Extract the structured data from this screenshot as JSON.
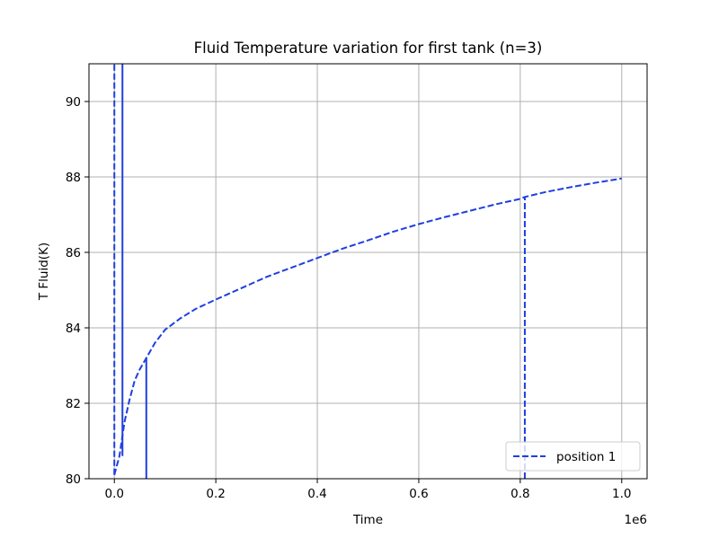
{
  "chart_data": {
    "type": "line",
    "title": "Fluid Temperature variation for first tank (n=3)",
    "xlabel": "Time",
    "ylabel": "T Fluid(K)",
    "x_offset_label": "1e6",
    "xlim": [
      -0.05,
      1.05
    ],
    "ylim": [
      80,
      91
    ],
    "xticks": [
      0.0,
      0.2,
      0.4,
      0.6,
      0.8,
      1.0
    ],
    "xtick_labels": [
      "0.0",
      "0.2",
      "0.4",
      "0.6",
      "0.8",
      "1.0"
    ],
    "yticks": [
      80,
      82,
      84,
      86,
      88,
      90
    ],
    "ytick_labels": [
      "80",
      "82",
      "84",
      "86",
      "88",
      "90"
    ],
    "grid": true,
    "legend_position": "lower-right",
    "color": "#1f3fe0",
    "series": [
      {
        "name": "position 1",
        "style": "dashed",
        "x": [
          0.0,
          0.01,
          0.02,
          0.03,
          0.04,
          0.05,
          0.063,
          0.08,
          0.1,
          0.13,
          0.16,
          0.2,
          0.25,
          0.3,
          0.35,
          0.4,
          0.45,
          0.5,
          0.55,
          0.6,
          0.65,
          0.7,
          0.75,
          0.8,
          0.809,
          0.85,
          0.9,
          0.95,
          1.0
        ],
        "y": [
          80.1,
          80.6,
          81.5,
          82.1,
          82.6,
          82.9,
          83.2,
          83.6,
          83.95,
          84.25,
          84.5,
          84.75,
          85.05,
          85.35,
          85.6,
          85.85,
          86.1,
          86.32,
          86.55,
          86.75,
          86.93,
          87.1,
          87.27,
          87.42,
          87.47,
          87.6,
          87.73,
          87.85,
          87.96
        ]
      }
    ],
    "vertical_segments": [
      {
        "x": 0.0,
        "y_from": 80.1,
        "y_to": 91,
        "style": "dashed"
      },
      {
        "x": 0.016,
        "y_from": 80.6,
        "y_to": 91,
        "style": "solid"
      },
      {
        "x": 0.063,
        "y_from": 80,
        "y_to": 83.2,
        "style": "solid"
      },
      {
        "x": 0.809,
        "y_from": 80,
        "y_to": 87.47,
        "style": "dashed"
      }
    ]
  }
}
